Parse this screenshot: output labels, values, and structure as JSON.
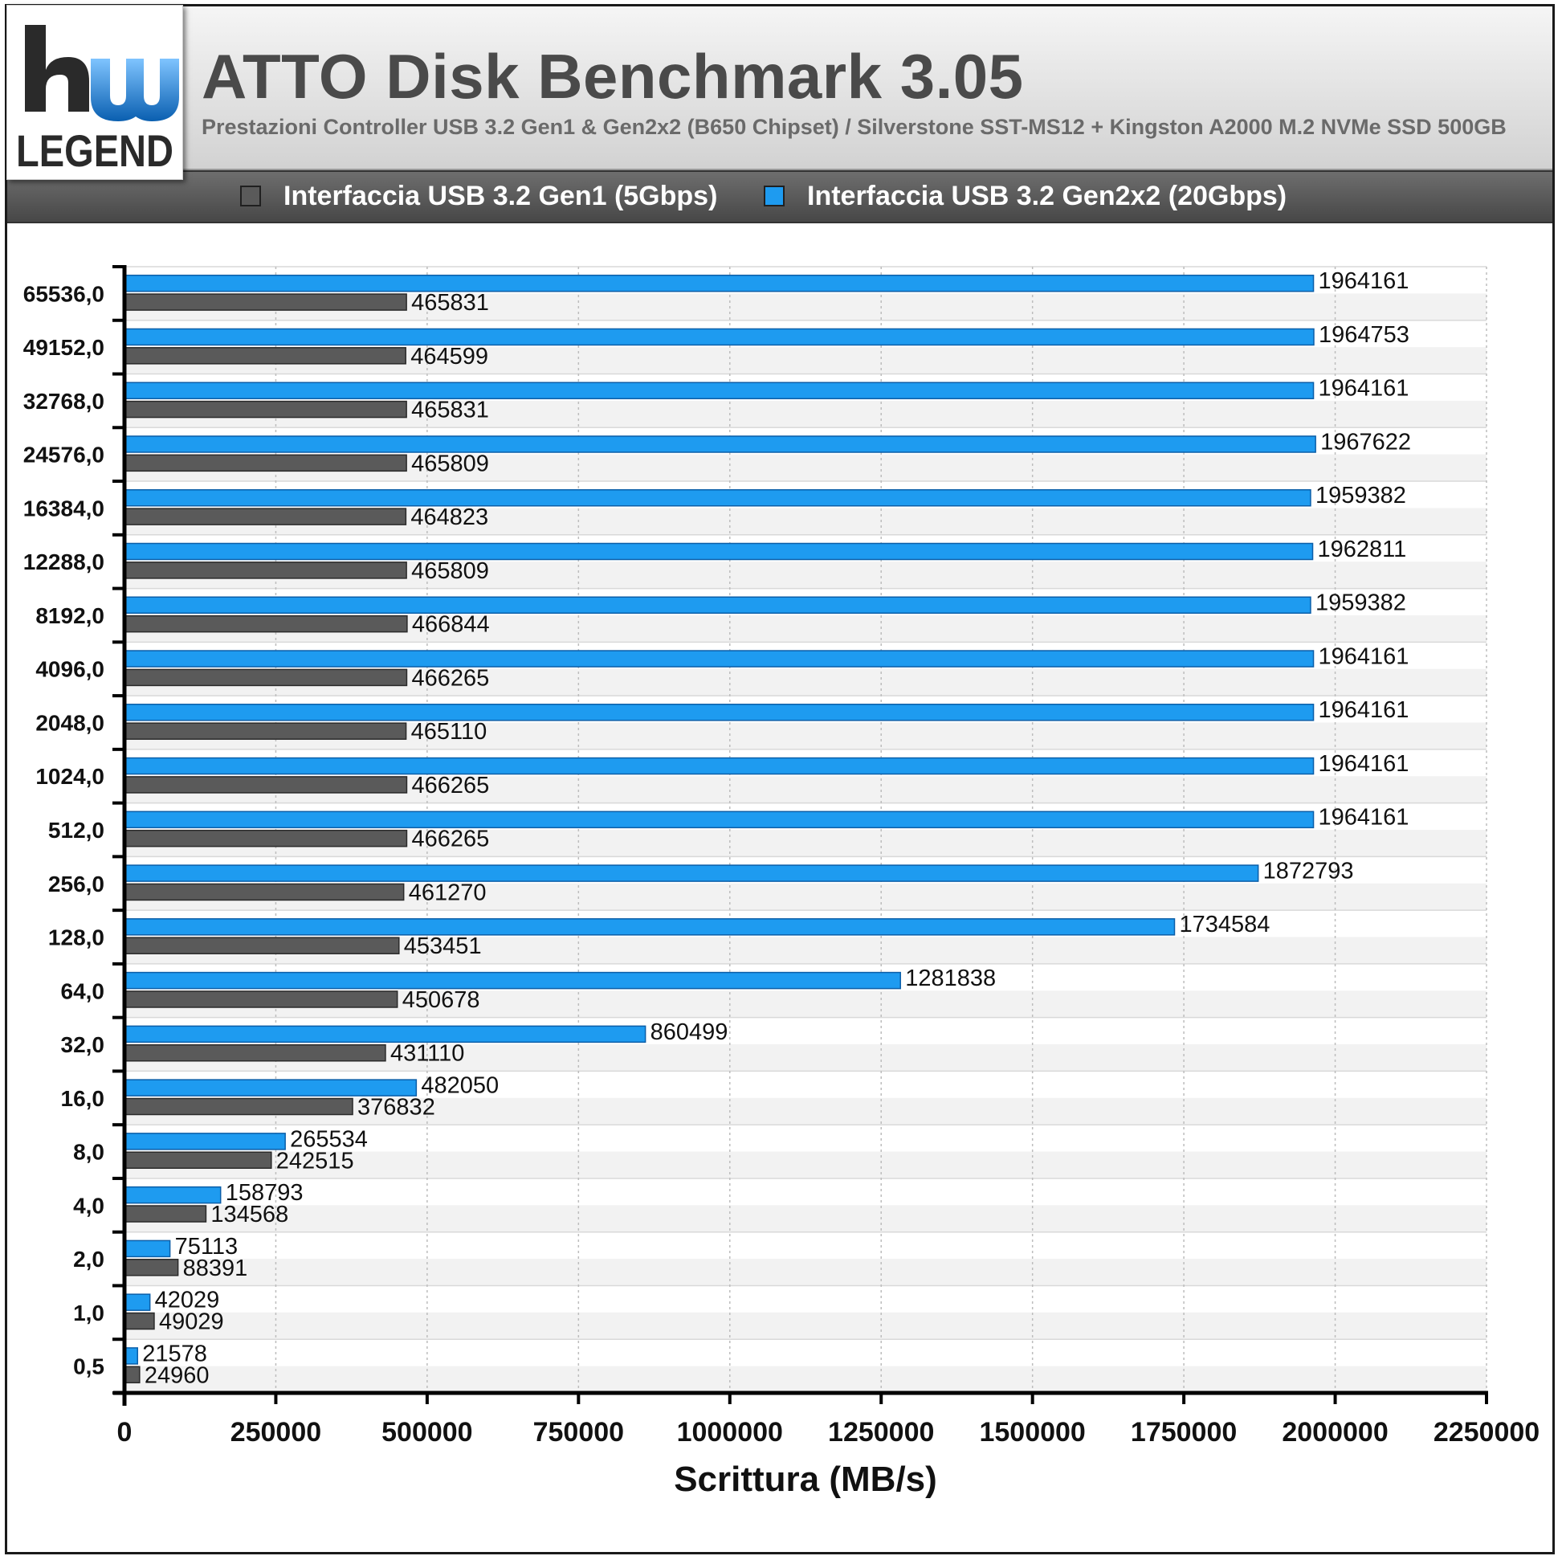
{
  "header": {
    "title": "ATTO Disk Benchmark 3.05",
    "subtitle": "Prestazioni Controller USB 3.2 Gen1 & Gen2x2 (B650 Chipset) / Silverstone SST-MS12 + Kingston A2000 M.2 NVMe SSD 500GB"
  },
  "logo": {
    "icon": "hwlegend-logo",
    "mark": "hw",
    "text": "LEGEND",
    "colors": {
      "blue": "#1e88d8",
      "dark": "#2a2a2a"
    }
  },
  "colors": {
    "gen1": "#5a5a5a",
    "gen2x2": "#1e9bf0",
    "legend_bar": "#555555",
    "stripe": "#f2f2f2"
  },
  "chart_data": {
    "type": "bar",
    "orientation": "horizontal",
    "xlabel": "Scrittura (MB/s)",
    "xlim": [
      0,
      2250000
    ],
    "xticks": [
      "0",
      "250000",
      "500000",
      "750000",
      "1000000",
      "1250000",
      "1500000",
      "1750000",
      "2000000",
      "2250000"
    ],
    "grid": true,
    "legend_placement": "top",
    "categories": [
      "65536,0",
      "49152,0",
      "32768,0",
      "24576,0",
      "16384,0",
      "12288,0",
      "8192,0",
      "4096,0",
      "2048,0",
      "1024,0",
      "512,0",
      "256,0",
      "128,0",
      "64,0",
      "32,0",
      "16,0",
      "8,0",
      "4,0",
      "2,0",
      "1,0",
      "0,5"
    ],
    "series": [
      {
        "name": "Interfaccia USB 3.2 Gen2x2 (20Gbps)",
        "color": "#1e9bf0",
        "values": [
          1964161,
          1964753,
          1964161,
          1967622,
          1959382,
          1962811,
          1959382,
          1964161,
          1964161,
          1964161,
          1964161,
          1872793,
          1734584,
          1281838,
          860499,
          482050,
          265534,
          158793,
          75113,
          42029,
          21578
        ]
      },
      {
        "name": "Interfaccia USB 3.2 Gen1 (5Gbps)",
        "color": "#5a5a5a",
        "values": [
          465831,
          464599,
          465831,
          465809,
          464823,
          465809,
          466844,
          466265,
          465110,
          466265,
          466265,
          461270,
          453451,
          450678,
          431110,
          376832,
          242515,
          134568,
          88391,
          49029,
          24960
        ]
      }
    ]
  }
}
